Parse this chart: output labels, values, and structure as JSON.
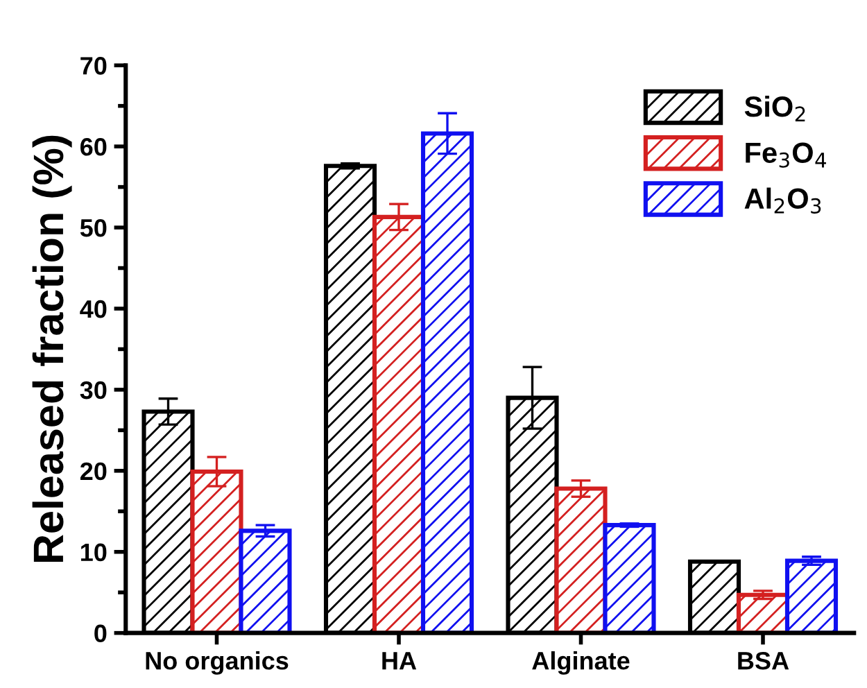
{
  "chart_data": {
    "type": "bar",
    "ylabel": "Released fraction (%)",
    "categories": [
      "No organics",
      "HA",
      "Alginate",
      "BSA"
    ],
    "series": [
      {
        "name": "SiO$_{2}$",
        "color": "#000000",
        "values": [
          27.3,
          57.6,
          29.0,
          8.8
        ],
        "errors": [
          1.6,
          0.3,
          3.8,
          0.1
        ]
      },
      {
        "name": "Fe$_{3}$O$_{4}$",
        "color": "#d42020",
        "values": [
          19.9,
          51.3,
          17.8,
          4.7
        ],
        "errors": [
          1.8,
          1.6,
          1.0,
          0.5
        ]
      },
      {
        "name": "Al$_{2}$O$_{3}$",
        "color": "#1010f0",
        "values": [
          12.6,
          61.6,
          13.3,
          8.9
        ],
        "errors": [
          0.7,
          2.5,
          0.2,
          0.5
        ]
      }
    ],
    "ylim": [
      0,
      70
    ],
    "yticks": [
      0,
      10,
      20,
      30,
      40,
      50,
      60,
      70
    ],
    "grid": false,
    "legend": "top right"
  }
}
